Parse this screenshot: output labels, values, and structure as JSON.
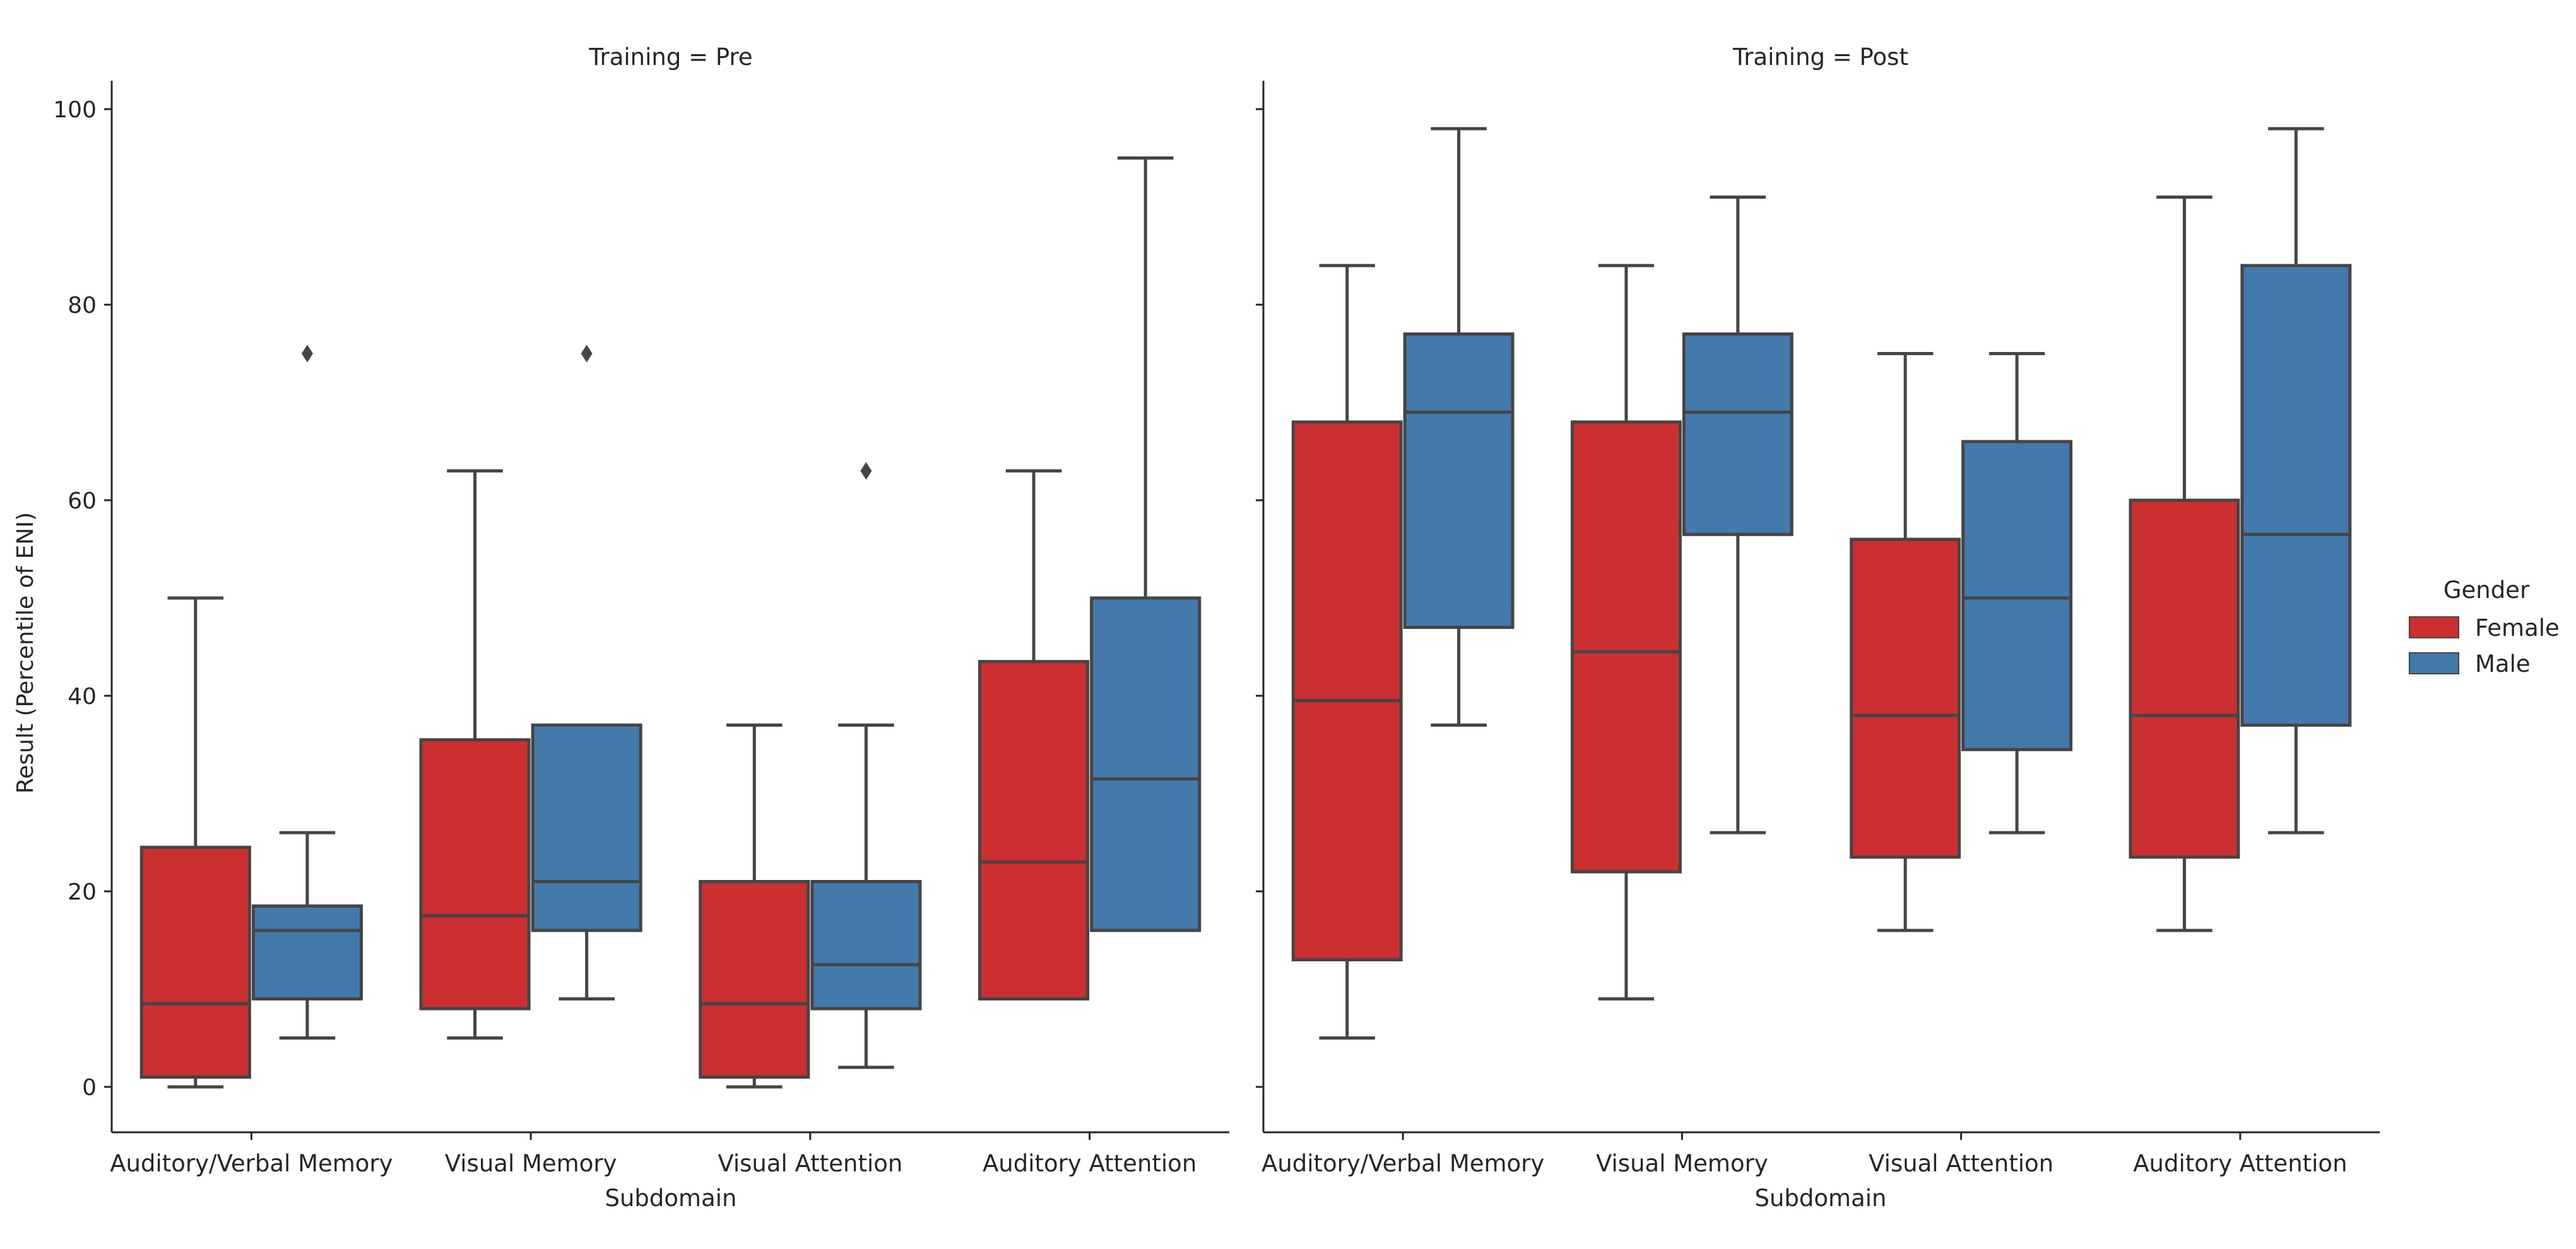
{
  "chart_data": {
    "type": "boxplot",
    "layout": "faceted",
    "ylabel": "Result (Percentile of ENI)",
    "xlabel": "Subdomain",
    "ylim": [
      -5,
      103
    ],
    "yticks": [
      0,
      20,
      40,
      60,
      80,
      100
    ],
    "categories": [
      "Auditory/Verbal Memory",
      "Visual Memory",
      "Visual Attention",
      "Auditory Attention"
    ],
    "legend": {
      "title": "Gender",
      "placement": "right",
      "items": [
        {
          "name": "Female",
          "color": "#cc2f30"
        },
        {
          "name": "Male",
          "color": "#4379ab"
        }
      ]
    },
    "panels": [
      {
        "title": "Training = Pre",
        "groups": [
          {
            "category": "Auditory/Verbal Memory",
            "series": "Female",
            "whislo": 0,
            "q1": 1,
            "med": 8.5,
            "q3": 24.5,
            "whishi": 50,
            "fliers": []
          },
          {
            "category": "Auditory/Verbal Memory",
            "series": "Male",
            "whislo": 5,
            "q1": 9,
            "med": 16,
            "q3": 18.5,
            "whishi": 26,
            "fliers": [
              75
            ]
          },
          {
            "category": "Visual Memory",
            "series": "Female",
            "whislo": 5,
            "q1": 8,
            "med": 17.5,
            "q3": 35.5,
            "whishi": 63,
            "fliers": []
          },
          {
            "category": "Visual Memory",
            "series": "Male",
            "whislo": 9,
            "q1": 16,
            "med": 21,
            "q3": 37,
            "whishi": 37,
            "fliers": [
              75
            ]
          },
          {
            "category": "Visual Attention",
            "series": "Female",
            "whislo": 0,
            "q1": 1,
            "med": 8.5,
            "q3": 21,
            "whishi": 37,
            "fliers": []
          },
          {
            "category": "Visual Attention",
            "series": "Male",
            "whislo": 2,
            "q1": 8,
            "med": 12.5,
            "q3": 21,
            "whishi": 37,
            "fliers": [
              63
            ]
          },
          {
            "category": "Auditory Attention",
            "series": "Female",
            "whislo": 9,
            "q1": 9,
            "med": 23,
            "q3": 43.5,
            "whishi": 63,
            "fliers": []
          },
          {
            "category": "Auditory Attention",
            "series": "Male",
            "whislo": 16,
            "q1": 16,
            "med": 31.5,
            "q3": 50,
            "whishi": 95,
            "fliers": []
          }
        ]
      },
      {
        "title": "Training = Post",
        "groups": [
          {
            "category": "Auditory/Verbal Memory",
            "series": "Female",
            "whislo": 5,
            "q1": 13,
            "med": 39.5,
            "q3": 68,
            "whishi": 84,
            "fliers": []
          },
          {
            "category": "Auditory/Verbal Memory",
            "series": "Male",
            "whislo": 37,
            "q1": 47,
            "med": 69,
            "q3": 77,
            "whishi": 98,
            "fliers": []
          },
          {
            "category": "Visual Memory",
            "series": "Female",
            "whislo": 9,
            "q1": 22,
            "med": 44.5,
            "q3": 68,
            "whishi": 84,
            "fliers": []
          },
          {
            "category": "Visual Memory",
            "series": "Male",
            "whislo": 26,
            "q1": 56.5,
            "med": 69,
            "q3": 77,
            "whishi": 91,
            "fliers": []
          },
          {
            "category": "Visual Attention",
            "series": "Female",
            "whislo": 16,
            "q1": 23.5,
            "med": 38,
            "q3": 56,
            "whishi": 75,
            "fliers": []
          },
          {
            "category": "Visual Attention",
            "series": "Male",
            "whislo": 26,
            "q1": 34.5,
            "med": 50,
            "q3": 66,
            "whishi": 75,
            "fliers": []
          },
          {
            "category": "Auditory Attention",
            "series": "Female",
            "whislo": 16,
            "q1": 23.5,
            "med": 38,
            "q3": 60,
            "whishi": 91,
            "fliers": []
          },
          {
            "category": "Auditory Attention",
            "series": "Male",
            "whislo": 26,
            "q1": 37,
            "med": 56.5,
            "q3": 84,
            "whishi": 98,
            "fliers": []
          }
        ]
      }
    ]
  }
}
